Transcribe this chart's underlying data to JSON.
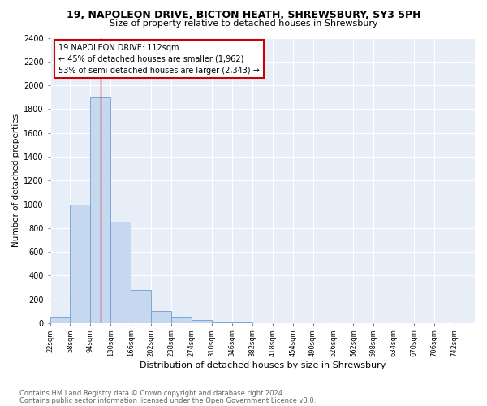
{
  "title": "19, NAPOLEON DRIVE, BICTON HEATH, SHREWSBURY, SY3 5PH",
  "subtitle": "Size of property relative to detached houses in Shrewsbury",
  "xlabel": "Distribution of detached houses by size in Shrewsbury",
  "ylabel": "Number of detached properties",
  "bar_color": "#c5d8f0",
  "bar_edge_color": "#6a9fd0",
  "annotation_box_text": "19 NAPOLEON DRIVE: 112sqm\n← 45% of detached houses are smaller (1,962)\n53% of semi-detached houses are larger (2,343) →",
  "annotation_box_color": "#cc0000",
  "property_line_x": 112,
  "categories": [
    "22sqm",
    "58sqm",
    "94sqm",
    "130sqm",
    "166sqm",
    "202sqm",
    "238sqm",
    "274sqm",
    "310sqm",
    "346sqm",
    "382sqm",
    "418sqm",
    "454sqm",
    "490sqm",
    "526sqm",
    "562sqm",
    "598sqm",
    "634sqm",
    "670sqm",
    "706sqm",
    "742sqm"
  ],
  "bin_edges": [
    22,
    58,
    94,
    130,
    166,
    202,
    238,
    274,
    310,
    346,
    382,
    418,
    454,
    490,
    526,
    562,
    598,
    634,
    670,
    706,
    742
  ],
  "bin_width": 36,
  "values": [
    50,
    1000,
    1900,
    850,
    280,
    100,
    50,
    30,
    8,
    6,
    2,
    2,
    1,
    0,
    0,
    2,
    0,
    0,
    0,
    0,
    2
  ],
  "ylim": [
    0,
    2400
  ],
  "yticks": [
    0,
    200,
    400,
    600,
    800,
    1000,
    1200,
    1400,
    1600,
    1800,
    2000,
    2200,
    2400
  ],
  "footnote1": "Contains HM Land Registry data © Crown copyright and database right 2024.",
  "footnote2": "Contains public sector information licensed under the Open Government Licence v3.0.",
  "bg_color": "#e8eef8"
}
